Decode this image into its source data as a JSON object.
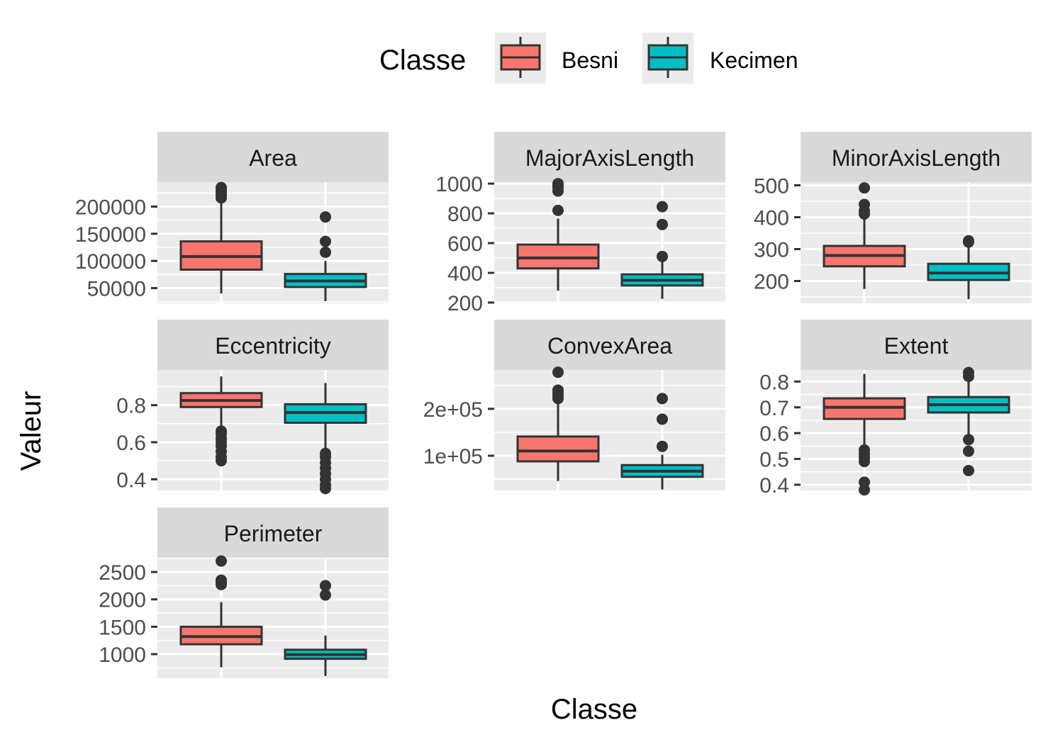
{
  "chart_data": {
    "type": "boxplot",
    "xlabel": "Classe",
    "ylabel": "Valeur",
    "legend": {
      "title": "Classe",
      "position": "top",
      "items": [
        {
          "name": "Besni",
          "color": "#F8766D"
        },
        {
          "name": "Kecimen",
          "color": "#00BFC4"
        }
      ]
    },
    "grid": true,
    "facets": [
      {
        "name": "Area",
        "ylim": [
          22000,
          245000
        ],
        "yticks": [
          50000,
          100000,
          150000,
          200000
        ],
        "yticklabels": [
          "50000",
          "100000",
          "150000",
          "200000"
        ],
        "boxes": [
          {
            "class": "Besni",
            "min": 40000,
            "q1": 84000,
            "median": 108000,
            "q3": 136000,
            "max": 212000,
            "outliers": [
              216000,
              221000,
              226000,
              230000,
              235000
            ]
          },
          {
            "class": "Kecimen",
            "min": 26000,
            "q1": 52000,
            "median": 63000,
            "q3": 76000,
            "max": 100000,
            "outliers": [
              116000,
              136000,
              181000
            ]
          }
        ]
      },
      {
        "name": "MajorAxisLength",
        "ylim": [
          195,
          1010
        ],
        "yticks": [
          200,
          400,
          600,
          800,
          1000
        ],
        "yticklabels": [
          "200",
          "400",
          "600",
          "800",
          "1000"
        ],
        "boxes": [
          {
            "class": "Besni",
            "min": 280,
            "q1": 430,
            "median": 500,
            "q3": 590,
            "max": 765,
            "outliers": [
              820,
              950,
              975,
              990,
              1000
            ]
          },
          {
            "class": "Kecimen",
            "min": 225,
            "q1": 315,
            "median": 350,
            "q3": 390,
            "max": 490,
            "outliers": [
              510,
              725,
              845
            ]
          }
        ]
      },
      {
        "name": "MinorAxisLength",
        "ylim": [
          130,
          510
        ],
        "yticks": [
          200,
          300,
          400,
          500
        ],
        "yticklabels": [
          "200",
          "300",
          "400",
          "500"
        ],
        "boxes": [
          {
            "class": "Besni",
            "min": 175,
            "q1": 246,
            "median": 280,
            "q3": 310,
            "max": 395,
            "outliers": [
              410,
              420,
              440,
              492
            ]
          },
          {
            "class": "Kecimen",
            "min": 143,
            "q1": 203,
            "median": 225,
            "q3": 254,
            "max": 320,
            "outliers": [
              322,
              326
            ]
          }
        ]
      },
      {
        "name": "Eccentricity",
        "ylim": [
          0.34,
          0.99
        ],
        "yticks": [
          0.4,
          0.6,
          0.8
        ],
        "yticklabels": [
          "0.4",
          "0.6",
          "0.8"
        ],
        "boxes": [
          {
            "class": "Besni",
            "min": 0.67,
            "q1": 0.79,
            "median": 0.825,
            "q3": 0.865,
            "max": 0.955,
            "outliers": [
              0.5,
              0.52,
              0.55,
              0.58,
              0.6,
              0.62,
              0.645,
              0.66
            ]
          },
          {
            "class": "Kecimen",
            "min": 0.56,
            "q1": 0.705,
            "median": 0.76,
            "q3": 0.805,
            "max": 0.92,
            "outliers": [
              0.35,
              0.37,
              0.4,
              0.43,
              0.46,
              0.49,
              0.52,
              0.54
            ]
          }
        ]
      },
      {
        "name": "ConvexArea",
        "ylim": [
          26000,
          283000
        ],
        "yticks": [
          100000,
          200000
        ],
        "yticklabels": [
          "1e+05",
          "2e+05"
        ],
        "boxes": [
          {
            "class": "Besni",
            "min": 46000,
            "q1": 88000,
            "median": 110000,
            "q3": 141000,
            "max": 218000,
            "outliers": [
              222000,
              228000,
              235000,
              240000,
              278000
            ]
          },
          {
            "class": "Kecimen",
            "min": 28000,
            "q1": 55000,
            "median": 67000,
            "q3": 80000,
            "max": 102000,
            "outliers": [
              120000,
              178000,
              222000
            ]
          }
        ]
      },
      {
        "name": "Extent",
        "ylim": [
          0.378,
          0.845
        ],
        "yticks": [
          0.4,
          0.5,
          0.6,
          0.7,
          0.8
        ],
        "yticklabels": [
          "0.4",
          "0.5",
          "0.6",
          "0.7",
          "0.8"
        ],
        "boxes": [
          {
            "class": "Besni",
            "min": 0.545,
            "q1": 0.655,
            "median": 0.7,
            "q3": 0.735,
            "max": 0.83,
            "outliers": [
              0.38,
              0.41,
              0.49,
              0.505,
              0.52,
              0.535
            ]
          },
          {
            "class": "Kecimen",
            "min": 0.59,
            "q1": 0.68,
            "median": 0.71,
            "q3": 0.74,
            "max": 0.815,
            "outliers": [
              0.455,
              0.53,
              0.575,
              0.82,
              0.835
            ]
          }
        ]
      },
      {
        "name": "Perimeter",
        "ylim": [
          560,
          2760
        ],
        "yticks": [
          1000,
          1500,
          2000,
          2500
        ],
        "yticklabels": [
          "1000",
          "1500",
          "2000",
          "2500"
        ],
        "boxes": [
          {
            "class": "Besni",
            "min": 760,
            "q1": 1180,
            "median": 1320,
            "q3": 1500,
            "max": 1950,
            "outliers": [
              2270,
              2310,
              2350,
              2700
            ]
          },
          {
            "class": "Kecimen",
            "min": 600,
            "q1": 915,
            "median": 990,
            "q3": 1080,
            "max": 1340,
            "outliers": [
              2080,
              2250
            ]
          }
        ]
      }
    ]
  }
}
